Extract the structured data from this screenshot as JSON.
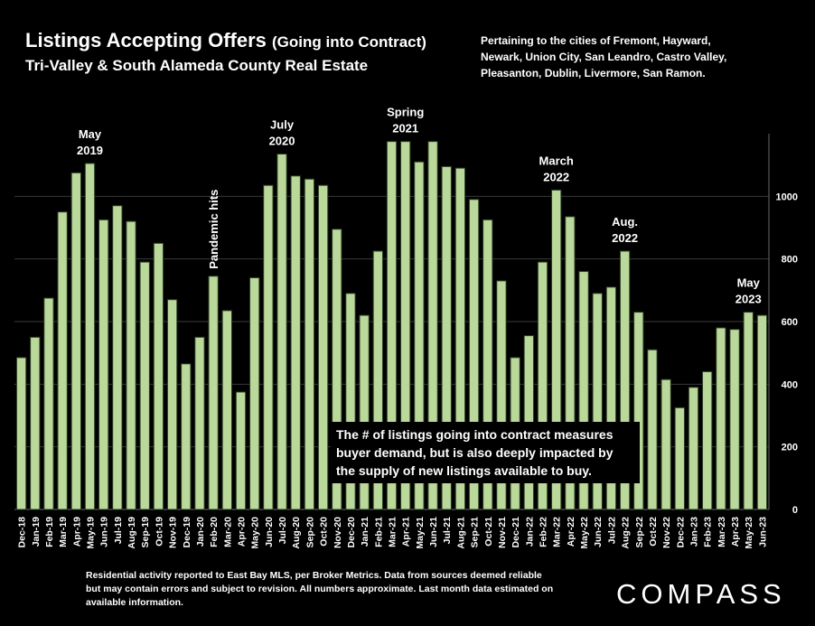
{
  "header": {
    "title": "Listings Accepting Offers",
    "title_paren": "(Going into Contract)",
    "subtitle": "Tri-Valley & South Alameda County Real Estate",
    "cities_note": "Pertaining to the cities of Fremont, Hayward, Newark, Union City, San Leandro, Castro Valley, Pleasanton, Dublin, Livermore, San Ramon."
  },
  "callout": "The # of listings going into contract measures buyer demand, but is also deeply impacted by the supply of new listings available to buy.",
  "footer": "Residential activity reported to East Bay MLS, per Broker Metrics. Data from sources deemed reliable but may contain errors and subject to revision.  All numbers approximate. Last month data estimated on available information.",
  "brand": "COMPASS",
  "chart_data": {
    "type": "bar",
    "title": "Listings Accepting Offers (Going into Contract)",
    "subtitle": "Tri-Valley & South Alameda County Real Estate",
    "categories": [
      "Dec-18",
      "Jan-19",
      "Feb-19",
      "Mar-19",
      "Apr-19",
      "May-19",
      "Jun-19",
      "Jul-19",
      "Aug-19",
      "Sep-19",
      "Oct-19",
      "Nov-19",
      "Dec-19",
      "Jan-20",
      "Feb-20",
      "Mar-20",
      "Apr-20",
      "May-20",
      "Jun-20",
      "Jul-20",
      "Aug-20",
      "Sep-20",
      "Oct-20",
      "Nov-20",
      "Dec-20",
      "Jan-21",
      "Feb-21",
      "Mar-21",
      "Apr-21",
      "May-21",
      "Jun-21",
      "Jul-21",
      "Aug-21",
      "Sep-21",
      "Oct-21",
      "Nov-21",
      "Dec-21",
      "Jan-22",
      "Feb-22",
      "Mar-22",
      "Apr-22",
      "May-22",
      "Jun-22",
      "Jul-22",
      "Aug-22",
      "Sep-22",
      "Oct-22",
      "Nov-22",
      "Dec-22",
      "Jan-23",
      "Feb-23",
      "Mar-23",
      "Apr-23",
      "May-23",
      "Jun-23"
    ],
    "values": [
      485,
      550,
      675,
      950,
      1075,
      1105,
      925,
      970,
      920,
      790,
      850,
      670,
      465,
      550,
      745,
      635,
      375,
      740,
      1035,
      1135,
      1065,
      1055,
      1035,
      895,
      690,
      620,
      825,
      1175,
      1175,
      1110,
      1175,
      1095,
      1090,
      990,
      925,
      730,
      485,
      555,
      790,
      1020,
      935,
      760,
      690,
      710,
      825,
      630,
      510,
      415,
      325,
      390,
      440,
      580,
      575,
      630,
      620
    ],
    "ylim": [
      0,
      1200
    ],
    "yticks": [
      0,
      200,
      400,
      600,
      800,
      1000
    ],
    "xlabel": "",
    "ylabel": "",
    "grid": true,
    "bar_color": "#b9d89a",
    "bar_edge_color": "#2d3f26",
    "annotations": [
      {
        "text": "May 2019",
        "lines": [
          "May",
          "2019"
        ],
        "category": "May-19"
      },
      {
        "text": "Pandemic hits",
        "lines": [
          "Pandemic hits"
        ],
        "category": "Feb-20",
        "rotated": true
      },
      {
        "text": "July 2020",
        "lines": [
          "July",
          "2020"
        ],
        "category": "Jul-20"
      },
      {
        "text": "Spring 2021",
        "lines": [
          "Spring",
          "2021"
        ],
        "category": "Apr-21"
      },
      {
        "text": "March 2022",
        "lines": [
          "March",
          "2022"
        ],
        "category": "Mar-22"
      },
      {
        "text": "Aug. 2022",
        "lines": [
          "Aug.",
          "2022"
        ],
        "category": "Aug-22"
      },
      {
        "text": "May 2023",
        "lines": [
          "May",
          "2023"
        ],
        "category": "May-23"
      }
    ]
  }
}
